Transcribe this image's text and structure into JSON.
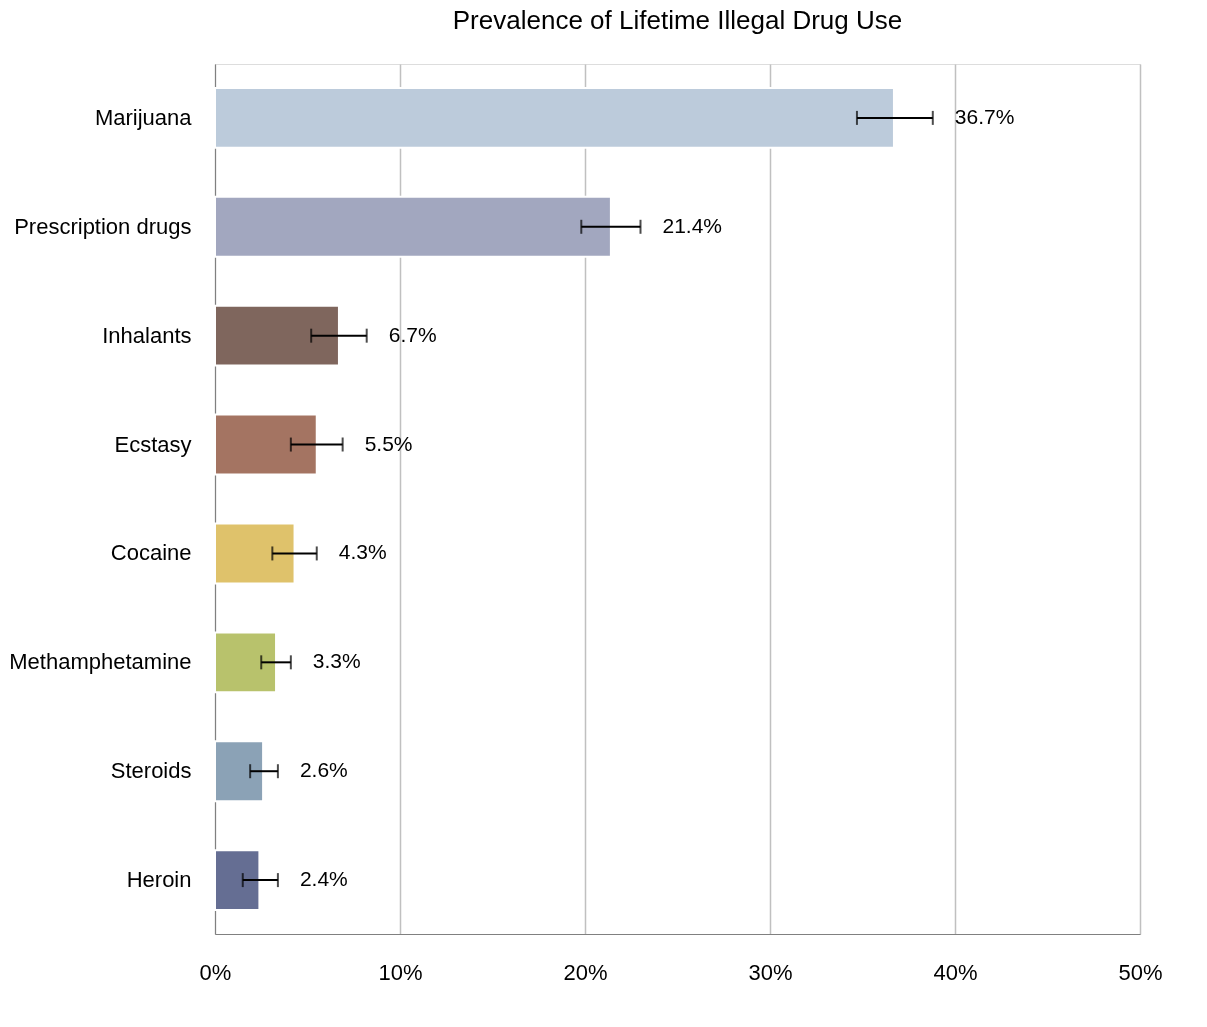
{
  "chart_data": {
    "type": "bar",
    "orientation": "horizontal",
    "title": "Prevalence of Lifetime Illegal Drug Use",
    "categories": [
      "Marijuana",
      "Prescription drugs",
      "Inhalants",
      "Ecstasy",
      "Cocaine",
      "Methamphetamine",
      "Steroids",
      "Heroin"
    ],
    "values": [
      36.7,
      21.4,
      6.7,
      5.5,
      4.3,
      3.3,
      2.6,
      2.4
    ],
    "colors": [
      "#bccbdb",
      "#a2a7bf",
      "#7f665d",
      "#a47462",
      "#dfc26b",
      "#b8c26c",
      "#8ba2b6",
      "#656e93"
    ],
    "errors": [
      [
        34.7,
        38.8
      ],
      [
        19.8,
        23.0
      ],
      [
        5.2,
        8.2
      ],
      [
        4.1,
        6.9
      ],
      [
        3.1,
        5.5
      ],
      [
        2.5,
        4.1
      ],
      [
        1.9,
        3.4
      ],
      [
        1.5,
        3.4
      ]
    ],
    "value_labels": [
      "36.7%",
      "21.4%",
      "6.7%",
      "5.5%",
      "4.3%",
      "3.3%",
      "2.6%",
      "2.4%"
    ],
    "xlim": [
      0,
      50
    ],
    "xticks": [
      {
        "value": 0,
        "label": "0%"
      },
      {
        "value": 10,
        "label": "10%"
      },
      {
        "value": 20,
        "label": "20%"
      },
      {
        "value": 30,
        "label": "30%"
      },
      {
        "value": 40,
        "label": "40%"
      },
      {
        "value": 50,
        "label": "50%"
      }
    ],
    "grid": "x"
  }
}
